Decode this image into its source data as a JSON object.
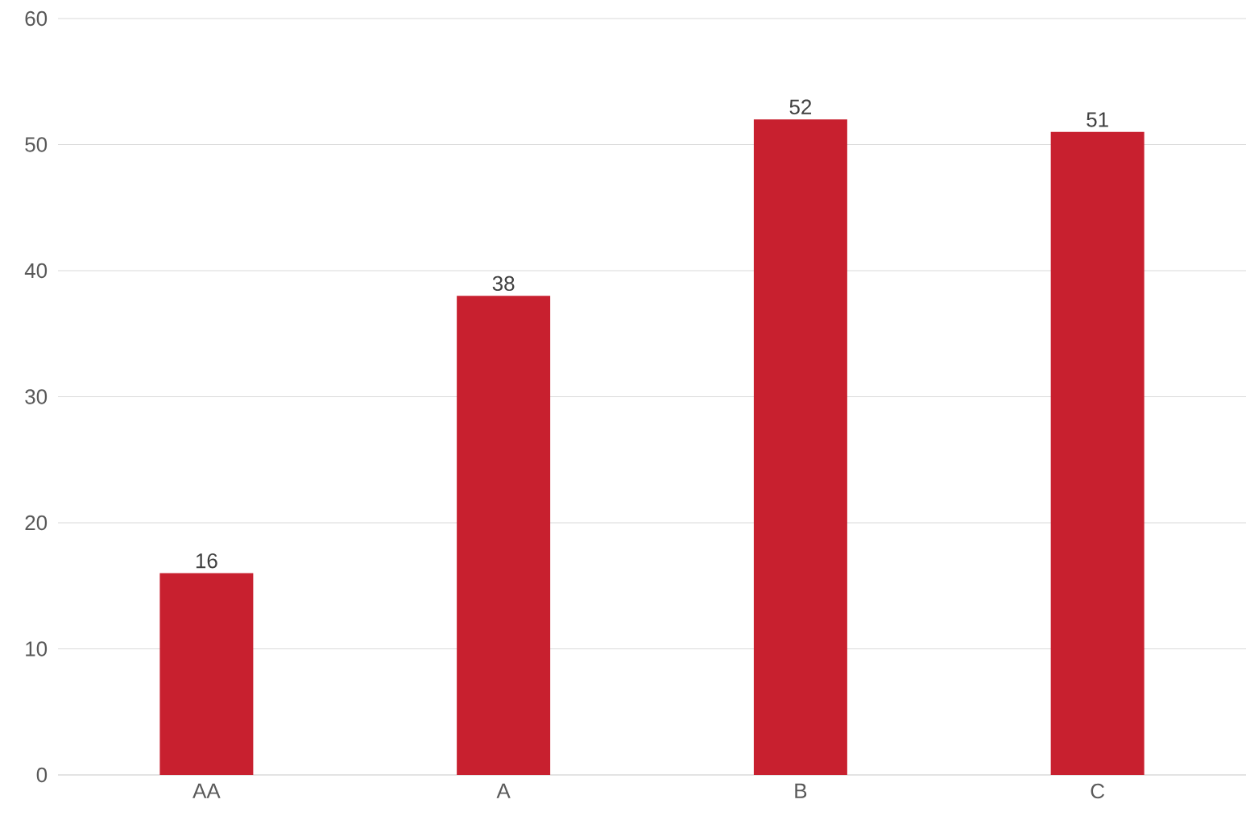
{
  "chart_data": {
    "type": "bar",
    "categories": [
      "AA",
      "A",
      "B",
      "C"
    ],
    "values": [
      16,
      38,
      52,
      51
    ],
    "color": "#c8202f",
    "ylim": [
      0,
      60
    ],
    "yticks": [
      0,
      10,
      20,
      30,
      40,
      50,
      60
    ],
    "grid": "y",
    "data_labels": true
  }
}
